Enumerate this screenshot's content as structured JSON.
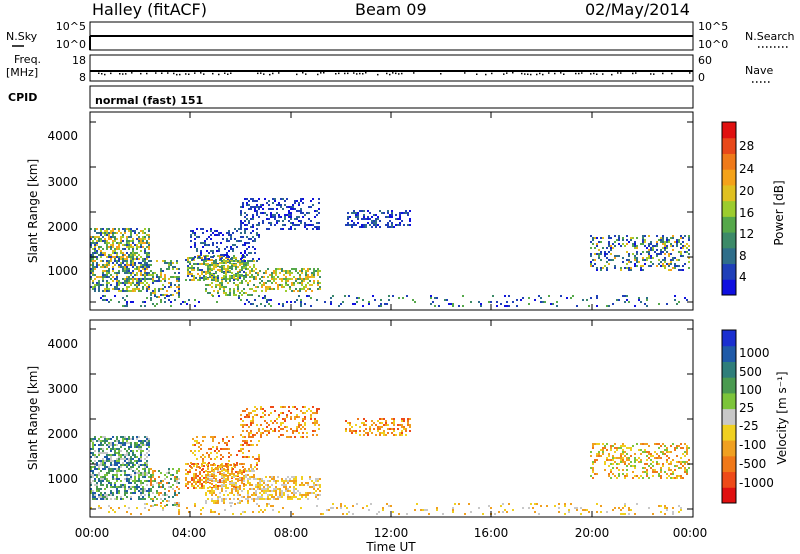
{
  "header": {
    "station": "Halley (fitACF)",
    "beam": "Beam 09",
    "date": "02/May/2014"
  },
  "strips": {
    "nsky": {
      "label": "N.Sky",
      "ticks": [
        "10^5",
        "10^0"
      ]
    },
    "nsearch": {
      "label": "N.Search",
      "ticks": [
        "10^5",
        "10^0"
      ]
    },
    "freq": {
      "label_line1": "Freq.",
      "label_line2": "[MHz]",
      "ticks": [
        "18",
        "8"
      ]
    },
    "nave": {
      "label": "Nave",
      "ticks": [
        "60",
        "0"
      ]
    },
    "cpid": {
      "label": "CPID",
      "value": "normal (fast) 151"
    }
  },
  "power_colorbar": {
    "title": "Power [dB]",
    "ticks": [
      "28",
      "24",
      "20",
      "16",
      "12",
      "8",
      "4"
    ],
    "colors": [
      "#1010e0",
      "#1f3fb8",
      "#2f6e8a",
      "#3c8a68",
      "#55a84a",
      "#9ccc2e",
      "#e0c020",
      "#f4a21a",
      "#ef7a1a",
      "#e8481a",
      "#e01010"
    ]
  },
  "velocity_colorbar": {
    "title": "Velocity [m s⁻¹]",
    "ticks": [
      "1000",
      "500",
      "100",
      "25",
      "-25",
      "-100",
      "-500",
      "-1000"
    ],
    "colors": [
      "#1a2fd0",
      "#1f5aa8",
      "#2f7e7a",
      "#4a9a50",
      "#7cc43a",
      "#c8c8c8",
      "#f0d020",
      "#f0a020",
      "#f07818",
      "#ee4a18",
      "#e01010"
    ]
  },
  "chart_data": [
    {
      "type": "heatmap",
      "title": "Power",
      "ylabel": "Slant Range [km]",
      "xlabel": "",
      "ylim": [
        180,
        4600
      ],
      "yticks": [
        "4000",
        "3000",
        "2000",
        "1000"
      ],
      "xlim": [
        0,
        24
      ]
    },
    {
      "type": "heatmap",
      "title": "Velocity",
      "ylabel": "Slant Range [km]",
      "xlabel": "Time UT",
      "ylim": [
        180,
        4600
      ],
      "yticks": [
        "4000",
        "3000",
        "2000",
        "1000"
      ],
      "xticks": [
        "00:00",
        "04:00",
        "08:00",
        "12:00",
        "16:00",
        "20:00",
        "00:00"
      ],
      "xlim": [
        0,
        24
      ]
    }
  ]
}
